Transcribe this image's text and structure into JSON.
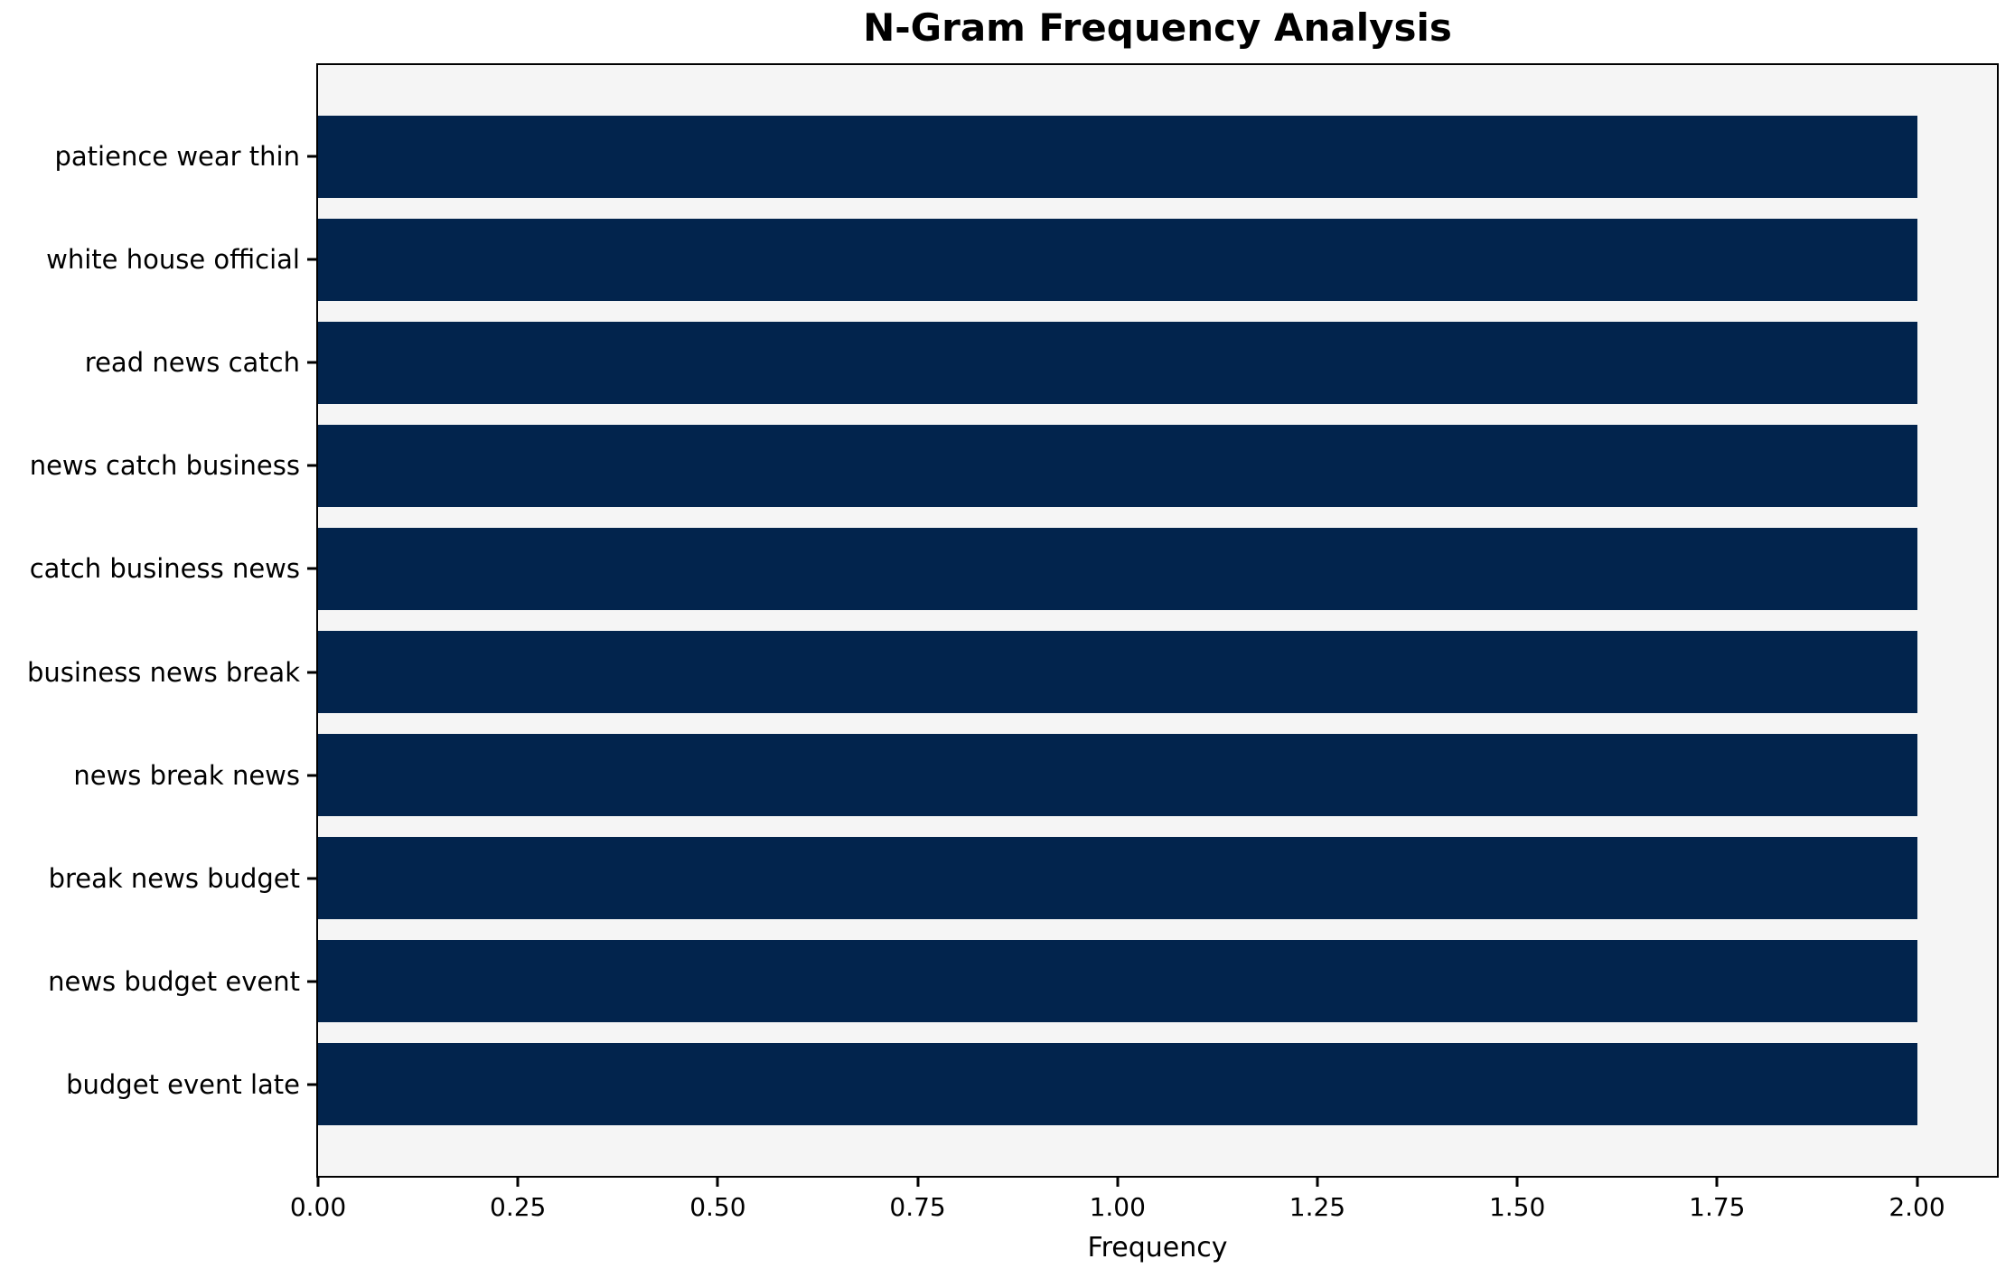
{
  "chart_data": {
    "type": "bar",
    "orientation": "horizontal",
    "title": "N-Gram Frequency Analysis",
    "xlabel": "Frequency",
    "ylabel": "",
    "categories": [
      "patience wear thin",
      "white house official",
      "read news catch",
      "news catch business",
      "catch business news",
      "business news break",
      "news break news",
      "break news budget",
      "news budget event",
      "budget event late"
    ],
    "values": [
      2,
      2,
      2,
      2,
      2,
      2,
      2,
      2,
      2,
      2
    ],
    "xlim": [
      0,
      2.1
    ],
    "xticks": [
      0,
      0.25,
      0.5,
      0.75,
      1.0,
      1.25,
      1.5,
      1.75,
      2.0
    ],
    "xtick_labels": [
      "0.00",
      "0.25",
      "0.50",
      "0.75",
      "1.00",
      "1.25",
      "1.50",
      "1.75",
      "2.00"
    ],
    "grid": false,
    "legend": "none",
    "bar_height_fraction": 0.8,
    "colors": {
      "bar": "#02244d",
      "plot_background": "#f5f5f5",
      "spine": "#000000",
      "text": "#000000",
      "figure_background": "#ffffff"
    }
  }
}
